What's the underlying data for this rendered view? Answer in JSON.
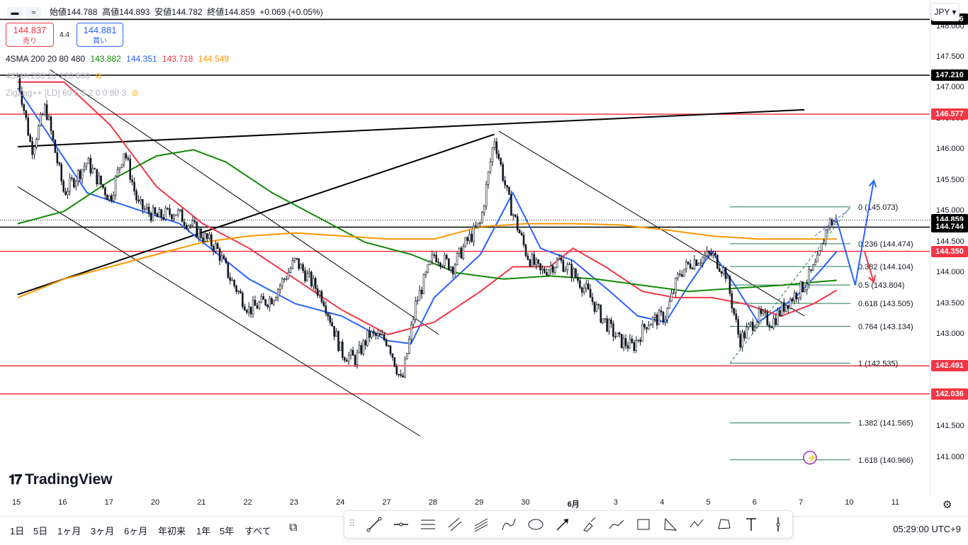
{
  "header": {
    "open_label": "始値",
    "open": "144.788",
    "high_label": "高値",
    "high": "144.893",
    "low_label": "安値",
    "low": "144.782",
    "close_label": "終値",
    "close": "144.859",
    "change": "+0.069 (+0.05%)"
  },
  "trade": {
    "sell_price": "144.837",
    "sell_label": "売り",
    "spread": "4.4",
    "buy_price": "144.881",
    "buy_label": "買い"
  },
  "indicators": [
    {
      "name": "4SMA 200 20 80 480",
      "values": [
        {
          "v": "143.882",
          "color": "#138a07"
        },
        {
          "v": "144.351",
          "color": "#2962ff"
        },
        {
          "v": "143.718",
          "color": "#f23645"
        },
        {
          "v": "144.549",
          "color": "#ff9800"
        }
      ]
    },
    {
      "name": "4SMA 200 20 120 600",
      "hidden": true
    },
    {
      "name": "ZigZag++ [LD] 60 5 3 2 0 0 80 3",
      "hidden": true
    }
  ],
  "currency": "JPY",
  "watermark": "TradingView",
  "chart_data": {
    "type": "candlestick",
    "instrument_quote": "JPY",
    "ylim": [
      140.85,
      148.55
    ],
    "price_ticks": [
      141.0,
      141.5,
      142.0,
      142.5,
      143.0,
      143.5,
      144.0,
      144.5,
      145.0,
      145.5,
      146.0,
      146.5,
      147.0,
      147.5,
      148.0
    ],
    "date_ticks": [
      "15",
      "16",
      "17",
      "20",
      "21",
      "22",
      "23",
      "24",
      "27",
      "28",
      "29",
      "30",
      "6月",
      "3",
      "4",
      "5",
      "6",
      "7",
      "10",
      "11"
    ],
    "close_path": [
      {
        "x": 0,
        "y": 147.2
      },
      {
        "x": 0.3,
        "y": 146.0
      },
      {
        "x": 0.6,
        "y": 146.7
      },
      {
        "x": 1.0,
        "y": 145.3
      },
      {
        "x": 1.5,
        "y": 145.8
      },
      {
        "x": 2.0,
        "y": 145.2
      },
      {
        "x": 2.3,
        "y": 146.0
      },
      {
        "x": 2.6,
        "y": 145.1
      },
      {
        "x": 3.0,
        "y": 144.9
      },
      {
        "x": 3.4,
        "y": 145.0
      },
      {
        "x": 3.7,
        "y": 144.8
      },
      {
        "x": 4.0,
        "y": 144.6
      },
      {
        "x": 4.3,
        "y": 144.4
      },
      {
        "x": 4.6,
        "y": 143.9
      },
      {
        "x": 5.0,
        "y": 143.4
      },
      {
        "x": 5.5,
        "y": 143.6
      },
      {
        "x": 6.0,
        "y": 144.2
      },
      {
        "x": 6.6,
        "y": 143.6
      },
      {
        "x": 7.0,
        "y": 142.7
      },
      {
        "x": 7.3,
        "y": 142.6
      },
      {
        "x": 7.6,
        "y": 143.0
      },
      {
        "x": 8.0,
        "y": 142.9
      },
      {
        "x": 8.3,
        "y": 142.2
      },
      {
        "x": 8.6,
        "y": 143.5
      },
      {
        "x": 9.0,
        "y": 144.3
      },
      {
        "x": 9.4,
        "y": 144.1
      },
      {
        "x": 9.7,
        "y": 144.5
      },
      {
        "x": 10.0,
        "y": 144.8
      },
      {
        "x": 10.3,
        "y": 146.2
      },
      {
        "x": 10.6,
        "y": 145.2
      },
      {
        "x": 11.0,
        "y": 144.3
      },
      {
        "x": 11.3,
        "y": 144.0
      },
      {
        "x": 11.7,
        "y": 144.2
      },
      {
        "x": 12.0,
        "y": 144.0
      },
      {
        "x": 12.3,
        "y": 143.7
      },
      {
        "x": 12.6,
        "y": 143.3
      },
      {
        "x": 13.0,
        "y": 142.9
      },
      {
        "x": 13.3,
        "y": 142.8
      },
      {
        "x": 13.6,
        "y": 143.2
      },
      {
        "x": 14.0,
        "y": 143.3
      },
      {
        "x": 14.3,
        "y": 144.0
      },
      {
        "x": 14.6,
        "y": 144.2
      },
      {
        "x": 15.0,
        "y": 144.3
      },
      {
        "x": 15.3,
        "y": 144.0
      },
      {
        "x": 15.6,
        "y": 142.9
      },
      {
        "x": 16.0,
        "y": 143.3
      },
      {
        "x": 16.3,
        "y": 143.2
      },
      {
        "x": 16.6,
        "y": 143.5
      },
      {
        "x": 17.0,
        "y": 143.8
      },
      {
        "x": 17.3,
        "y": 144.2
      },
      {
        "x": 17.5,
        "y": 144.8
      },
      {
        "x": 17.7,
        "y": 144.86
      }
    ],
    "moving_averages": [
      {
        "color": "#2962ff",
        "points": [
          [
            0,
            147.0
          ],
          [
            1.5,
            145.3
          ],
          [
            3.5,
            144.8
          ],
          [
            5,
            143.9
          ],
          [
            6,
            143.5
          ],
          [
            7,
            143.3
          ],
          [
            8,
            142.9
          ],
          [
            8.5,
            142.85
          ],
          [
            9,
            143.6
          ],
          [
            10,
            144.3
          ],
          [
            10.7,
            145.3
          ],
          [
            11.3,
            144.4
          ],
          [
            12,
            144.2
          ],
          [
            12.8,
            143.7
          ],
          [
            13.4,
            143.3
          ],
          [
            14,
            143.2
          ],
          [
            14.5,
            143.8
          ],
          [
            15,
            144.35
          ],
          [
            15.5,
            143.8
          ],
          [
            16,
            143.2
          ],
          [
            16.8,
            143.6
          ],
          [
            17.3,
            144.0
          ],
          [
            17.7,
            144.35
          ]
        ]
      },
      {
        "color": "#f23645",
        "points": [
          [
            0,
            147.1
          ],
          [
            1,
            147.1
          ],
          [
            2,
            146.4
          ],
          [
            3,
            145.4
          ],
          [
            4,
            144.8
          ],
          [
            5,
            144.4
          ],
          [
            6,
            143.9
          ],
          [
            7,
            143.4
          ],
          [
            8,
            143.0
          ],
          [
            9,
            143.2
          ],
          [
            10,
            143.7
          ],
          [
            10.7,
            144.1
          ],
          [
            11.5,
            144.1
          ],
          [
            12,
            144.4
          ],
          [
            12.7,
            144.1
          ],
          [
            13.5,
            143.7
          ],
          [
            14.2,
            143.6
          ],
          [
            15,
            143.6
          ],
          [
            15.7,
            143.5
          ],
          [
            16.5,
            143.3
          ],
          [
            17.2,
            143.5
          ],
          [
            17.7,
            143.72
          ]
        ]
      },
      {
        "color": "#138a07",
        "points": [
          [
            0,
            144.8
          ],
          [
            1,
            145.0
          ],
          [
            2,
            145.5
          ],
          [
            3,
            145.9
          ],
          [
            3.8,
            146.0
          ],
          [
            4.5,
            145.8
          ],
          [
            5.5,
            145.3
          ],
          [
            6.5,
            144.9
          ],
          [
            7.5,
            144.5
          ],
          [
            8.5,
            144.3
          ],
          [
            9.5,
            144.0
          ],
          [
            10.5,
            143.9
          ],
          [
            11.5,
            143.95
          ],
          [
            12.5,
            143.9
          ],
          [
            13.5,
            143.8
          ],
          [
            14.5,
            143.7
          ],
          [
            15.5,
            143.75
          ],
          [
            16.5,
            143.8
          ],
          [
            17.2,
            143.85
          ],
          [
            17.7,
            143.88
          ]
        ]
      },
      {
        "color": "#ff9800",
        "points": [
          [
            0,
            143.6
          ],
          [
            1,
            143.9
          ],
          [
            2,
            144.1
          ],
          [
            3,
            144.3
          ],
          [
            4,
            144.5
          ],
          [
            5,
            144.6
          ],
          [
            6,
            144.65
          ],
          [
            7,
            144.6
          ],
          [
            8,
            144.55
          ],
          [
            9,
            144.55
          ],
          [
            10,
            144.75
          ],
          [
            11,
            144.8
          ],
          [
            12,
            144.8
          ],
          [
            13,
            144.78
          ],
          [
            14,
            144.7
          ],
          [
            15,
            144.6
          ],
          [
            16,
            144.55
          ],
          [
            17,
            144.55
          ],
          [
            17.7,
            144.55
          ]
        ]
      }
    ],
    "horizontal_lines": [
      {
        "price": 148.116,
        "color": "#000000"
      },
      {
        "price": 147.21,
        "color": "#000000"
      },
      {
        "price": 146.577,
        "color": "#f23645"
      },
      {
        "price": 144.744,
        "color": "#000000"
      },
      {
        "price": 144.35,
        "color": "#f23645"
      },
      {
        "price": 142.491,
        "color": "#f23645"
      },
      {
        "price": 142.036,
        "color": "#f23645"
      }
    ],
    "price_labels": [
      {
        "text": "148.116",
        "price": 148.116,
        "bg": "#000000"
      },
      {
        "text": "147.210",
        "price": 147.21,
        "bg": "#000000"
      },
      {
        "text": "146.577",
        "price": 146.577,
        "bg": "#f23645"
      },
      {
        "text": "144.859",
        "price": 144.859,
        "bg": "#000000"
      },
      {
        "text": "144.744",
        "price": 144.744,
        "bg": "#000000"
      },
      {
        "text": "144.350",
        "price": 144.35,
        "bg": "#f23645"
      },
      {
        "text": "142.491",
        "price": 142.491,
        "bg": "#f23645"
      },
      {
        "text": "142.036",
        "price": 142.036,
        "bg": "#f23645"
      }
    ],
    "fibonacci": [
      {
        "label": "0 (145.073)",
        "price": 145.073
      },
      {
        "label": "0.236 (144.474)",
        "price": 144.474
      },
      {
        "label": "0.382 (144.104)",
        "price": 144.104
      },
      {
        "label": "0.5 (143.804)",
        "price": 143.804
      },
      {
        "label": "0.618 (143.505)",
        "price": 143.505
      },
      {
        "label": "0.764 (143.134)",
        "price": 143.134
      },
      {
        "label": "1 (142.535)",
        "price": 142.535
      },
      {
        "label": "1.382 (141.565)",
        "price": 141.565
      },
      {
        "label": "1.618 (140.966)",
        "price": 140.966
      }
    ],
    "trend_lines": [
      {
        "from": [
          0,
          146.05
        ],
        "to": [
          17.0,
          146.65
        ],
        "color": "#000000",
        "width": 2
      },
      {
        "from": [
          0,
          143.65
        ],
        "to": [
          10.3,
          146.25
        ],
        "color": "#000000",
        "width": 2
      },
      {
        "from": [
          0.7,
          147.3
        ],
        "to": [
          9.1,
          143.0
        ],
        "color": "#000000",
        "width": 1
      },
      {
        "from": [
          0,
          145.4
        ],
        "to": [
          8.7,
          141.35
        ],
        "color": "#000000",
        "width": 1
      },
      {
        "from": [
          10.4,
          146.3
        ],
        "to": [
          17.0,
          143.3
        ],
        "color": "#000000",
        "width": 1
      }
    ],
    "projection_paths": [
      {
        "color": "#2962ff",
        "points": [
          [
            17.7,
            144.86
          ],
          [
            18.1,
            143.8
          ],
          [
            18.5,
            145.5
          ]
        ]
      },
      {
        "color": "#f23645",
        "points": [
          [
            18.3,
            144.35
          ],
          [
            18.5,
            143.85
          ]
        ]
      }
    ],
    "timestamp": "05:29:00 UTC+9"
  },
  "toolbar": {
    "ranges": [
      "1日",
      "5日",
      "1ヶ月",
      "3ヶ月",
      "6ヶ月",
      "年初来",
      "1年",
      "5年",
      "すべて"
    ]
  }
}
